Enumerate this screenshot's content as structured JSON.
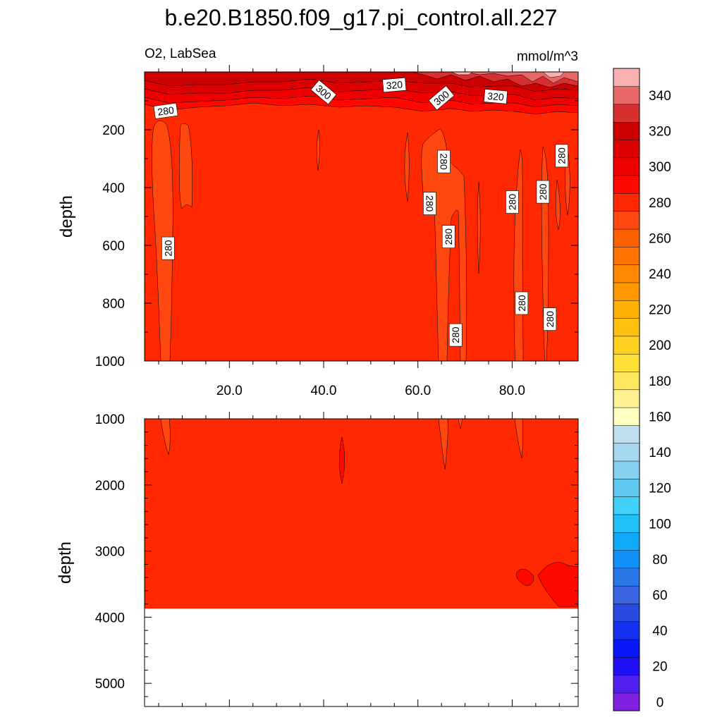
{
  "chart_data": {
    "type": "contour",
    "title": "b.e20.B1850.f09_g17.pi_control.all.227",
    "left_string": "O2, LabSea",
    "right_string": "mmol/m^3",
    "panels": [
      {
        "name": "upper",
        "ylabel": "depth",
        "ylim": [
          1000,
          0
        ],
        "xlim": [
          2,
          94
        ],
        "yticks": [
          200,
          400,
          600,
          800,
          1000
        ],
        "xticks": [
          20,
          40,
          60,
          80
        ],
        "xtick_labels": [
          "20.0",
          "40.0",
          "60.0",
          "80.0"
        ],
        "background_value": 280,
        "contour_labels": [
          {
            "text": "280",
            "x": 6.5,
            "y": 135,
            "rot": -8
          },
          {
            "text": "300",
            "x": 40,
            "y": 70,
            "rot": 40
          },
          {
            "text": "320",
            "x": 55,
            "y": 45,
            "rot": -5
          },
          {
            "text": "300",
            "x": 65,
            "y": 90,
            "rot": -40
          },
          {
            "text": "320",
            "x": 76.5,
            "y": 85,
            "rot": 5
          },
          {
            "text": "280",
            "x": 7,
            "y": 610,
            "rot": -90
          },
          {
            "text": "280",
            "x": 65.5,
            "y": 310,
            "rot": 90
          },
          {
            "text": "280",
            "x": 62.5,
            "y": 455,
            "rot": 90
          },
          {
            "text": "280",
            "x": 66.5,
            "y": 570,
            "rot": -90
          },
          {
            "text": "280",
            "x": 68,
            "y": 910,
            "rot": -90
          },
          {
            "text": "280",
            "x": 80,
            "y": 450,
            "rot": -90
          },
          {
            "text": "280",
            "x": 82,
            "y": 800,
            "rot": -90
          },
          {
            "text": "280",
            "x": 86.5,
            "y": 415,
            "rot": -90
          },
          {
            "text": "280",
            "x": 88,
            "y": 855,
            "rot": -90
          },
          {
            "text": "280",
            "x": 90.5,
            "y": 290,
            "rot": -90
          }
        ]
      },
      {
        "name": "lower",
        "ylabel": "depth",
        "ylim": [
          5350,
          1000
        ],
        "xlim": [
          2,
          94
        ],
        "yticks": [
          1000,
          2000,
          3000,
          4000,
          5000
        ],
        "bottom_depth": 3870,
        "background_value": 280
      }
    ],
    "colorbar": {
      "levels": [
        0,
        10,
        20,
        30,
        40,
        50,
        60,
        70,
        80,
        90,
        100,
        110,
        120,
        130,
        140,
        150,
        160,
        170,
        180,
        190,
        200,
        210,
        220,
        230,
        240,
        250,
        260,
        270,
        280,
        290,
        300,
        310,
        320,
        330,
        340,
        350
      ],
      "labels": [
        "0",
        "20",
        "40",
        "60",
        "80",
        "100",
        "120",
        "140",
        "160",
        "180",
        "200",
        "220",
        "240",
        "260",
        "280",
        "300",
        "320",
        "340"
      ],
      "colors": [
        "#8020e0",
        "#5020f0",
        "#2010f8",
        "#0818f8",
        "#1530f0",
        "#2848e0",
        "#3a64e0",
        "#2a78e8",
        "#1090f8",
        "#10a8f8",
        "#20c0f8",
        "#40d0f8",
        "#60c8f0",
        "#88d0f0",
        "#a8d8f0",
        "#c0e0f0",
        "#ffffc0",
        "#fff090",
        "#ffe860",
        "#ffe038",
        "#ffd020",
        "#ffc010",
        "#ffb000",
        "#ff9800",
        "#ff8800",
        "#ff7400",
        "#ff6000",
        "#ff4810",
        "#ff2800",
        "#ff0800",
        "#ee0000",
        "#dd0000",
        "#cc0000",
        "#d83030",
        "#e86868",
        "#f8b0b0"
      ]
    }
  }
}
